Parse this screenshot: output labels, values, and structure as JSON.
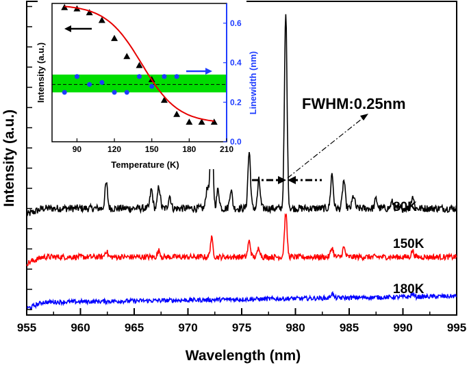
{
  "chart_data": [
    {
      "type": "line",
      "xlabel": "Wavelength (nm)",
      "ylabel": "Intensity (a.u.)",
      "xlim": [
        955,
        995
      ],
      "x_ticks": [
        955,
        960,
        965,
        970,
        975,
        980,
        985,
        990,
        995
      ],
      "annotation": "FWHM:0.25nm",
      "series": [
        {
          "name": "80K",
          "color": "#000000",
          "baseline": 0.34,
          "noise": 0.012,
          "peaks": [
            {
              "x": 962.4,
              "h": 0.08
            },
            {
              "x": 966.6,
              "h": 0.06
            },
            {
              "x": 967.3,
              "h": 0.07
            },
            {
              "x": 968.3,
              "h": 0.04
            },
            {
              "x": 971.8,
              "h": 0.07
            },
            {
              "x": 972.2,
              "h": 0.32
            },
            {
              "x": 972.8,
              "h": 0.06
            },
            {
              "x": 974.0,
              "h": 0.06
            },
            {
              "x": 975.7,
              "h": 0.18
            },
            {
              "x": 976.6,
              "h": 0.09
            },
            {
              "x": 979.1,
              "h": 0.62
            },
            {
              "x": 983.4,
              "h": 0.11
            },
            {
              "x": 984.5,
              "h": 0.09
            },
            {
              "x": 985.4,
              "h": 0.04
            },
            {
              "x": 987.5,
              "h": 0.03
            },
            {
              "x": 989.0,
              "h": 0.02
            },
            {
              "x": 990.9,
              "h": 0.04
            }
          ]
        },
        {
          "name": "150K",
          "color": "#ff0000",
          "baseline": 0.185,
          "noise": 0.009,
          "peaks": [
            {
              "x": 962.4,
              "h": 0.02
            },
            {
              "x": 967.3,
              "h": 0.02
            },
            {
              "x": 972.2,
              "h": 0.06
            },
            {
              "x": 975.7,
              "h": 0.05
            },
            {
              "x": 976.6,
              "h": 0.03
            },
            {
              "x": 979.1,
              "h": 0.14
            },
            {
              "x": 983.4,
              "h": 0.03
            },
            {
              "x": 984.5,
              "h": 0.03
            },
            {
              "x": 990.9,
              "h": 0.02
            }
          ]
        },
        {
          "name": "180K",
          "color": "#0000ff",
          "baseline": 0.04,
          "noise": 0.007,
          "slope": 0.02,
          "peaks": [
            {
              "x": 983.4,
              "h": 0.015
            },
            {
              "x": 990.9,
              "h": 0.01
            }
          ]
        }
      ]
    },
    {
      "type": "scatter",
      "xlabel": "Temperature (K)",
      "ylabel_left": "Intensity (a.u.)",
      "ylabel_right": "Linewidth (nm)",
      "xlim": [
        70,
        210
      ],
      "ylim_right": [
        0.0,
        0.7
      ],
      "x_ticks": [
        90,
        120,
        150,
        180,
        210
      ],
      "y_right_ticks": [
        0.0,
        0.2,
        0.4,
        0.6
      ],
      "series": [
        {
          "name": "Intensity",
          "axis": "left",
          "marker": "triangle",
          "color": "#000000",
          "x": [
            80,
            90,
            100,
            110,
            120,
            130,
            140,
            150,
            160,
            170,
            180,
            190,
            200
          ],
          "values": [
            0.98,
            0.97,
            0.94,
            0.88,
            0.74,
            0.6,
            0.53,
            0.42,
            0.26,
            0.15,
            0.09,
            0.09,
            0.09
          ]
        },
        {
          "name": "Linewidth",
          "axis": "right",
          "marker": "circle",
          "color": "#1e3cff",
          "x": [
            80,
            90,
            100,
            110,
            120,
            130,
            140,
            150,
            160,
            170
          ],
          "values": [
            0.25,
            0.33,
            0.29,
            0.3,
            0.25,
            0.25,
            0.33,
            0.28,
            0.33,
            0.33
          ]
        },
        {
          "name": "Fit",
          "axis": "left",
          "type": "line",
          "color": "#e60000",
          "x": [
            80,
            90,
            100,
            110,
            120,
            130,
            140,
            150,
            160,
            170,
            180,
            190,
            200
          ],
          "values": [
            0.98,
            0.97,
            0.93,
            0.86,
            0.76,
            0.63,
            0.48,
            0.33,
            0.19,
            0.11,
            0.08,
            0.08,
            0.09
          ]
        }
      ],
      "band": {
        "low": 0.25,
        "high": 0.34,
        "mean": 0.29,
        "color": "#00dd00"
      }
    }
  ]
}
